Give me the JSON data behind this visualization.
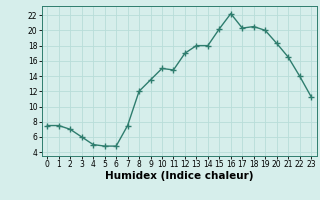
{
  "x": [
    0,
    1,
    2,
    3,
    4,
    5,
    6,
    7,
    8,
    9,
    10,
    11,
    12,
    13,
    14,
    15,
    16,
    17,
    18,
    19,
    20,
    21,
    22,
    23
  ],
  "y": [
    7.5,
    7.5,
    7.0,
    6.0,
    5.0,
    4.8,
    4.8,
    7.5,
    12.0,
    13.5,
    15.0,
    14.8,
    17.0,
    18.0,
    18.0,
    20.2,
    22.2,
    20.3,
    20.5,
    20.0,
    18.3,
    16.5,
    14.0,
    11.3
  ],
  "line_color": "#2e7d6e",
  "marker": "+",
  "bg_color": "#d6eeeb",
  "grid_color": "#b8ddd9",
  "xlabel": "Humidex (Indice chaleur)",
  "xlim": [
    -0.5,
    23.5
  ],
  "ylim": [
    3.5,
    23.2
  ],
  "yticks": [
    4,
    6,
    8,
    10,
    12,
    14,
    16,
    18,
    20,
    22
  ],
  "xticks": [
    0,
    1,
    2,
    3,
    4,
    5,
    6,
    7,
    8,
    9,
    10,
    11,
    12,
    13,
    14,
    15,
    16,
    17,
    18,
    19,
    20,
    21,
    22,
    23
  ],
  "tick_fontsize": 5.5,
  "xlabel_fontsize": 7.5,
  "linewidth": 1.0,
  "markersize": 4,
  "markeredgewidth": 1.0
}
